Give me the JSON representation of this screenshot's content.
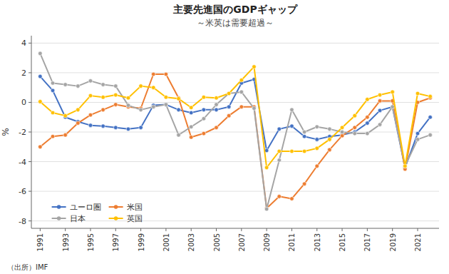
{
  "chart_data": {
    "type": "line",
    "title": "主要先進国のGDPギャップ",
    "subtitle": "～米英は需要超過～",
    "ylabel": "%",
    "source": "（出所）IMF",
    "x": [
      1991,
      1992,
      1993,
      1994,
      1995,
      1996,
      1997,
      1998,
      1999,
      2000,
      2001,
      2002,
      2003,
      2004,
      2005,
      2006,
      2007,
      2008,
      2009,
      2010,
      2011,
      2012,
      2013,
      2014,
      2015,
      2016,
      2017,
      2018,
      2019,
      2020,
      2021,
      2022
    ],
    "xlim": [
      1990.3,
      2022.7
    ],
    "xticks": [
      1991,
      1993,
      1995,
      1997,
      1999,
      2001,
      2003,
      2005,
      2007,
      2009,
      2011,
      2013,
      2015,
      2017,
      2019,
      2021
    ],
    "ylim": [
      -8.5,
      4.5
    ],
    "yticks": [
      -8,
      -6,
      -4,
      -2,
      0,
      2,
      4
    ],
    "grid": true,
    "legend": "lower left",
    "marker": "circle",
    "series": [
      {
        "name": "ユーロ圏",
        "color": "#4472C4",
        "values": [
          1.75,
          0.8,
          -1.0,
          -1.3,
          -1.55,
          -1.6,
          -1.7,
          -1.8,
          -1.7,
          -0.2,
          -0.15,
          -0.5,
          -0.7,
          -0.5,
          -0.5,
          -0.3,
          1.3,
          1.55,
          -3.25,
          -1.8,
          -1.6,
          -2.3,
          -2.5,
          -2.3,
          -2.2,
          -2.0,
          -1.4,
          -0.55,
          -0.3,
          -4.4,
          -2.1,
          -1.0
        ]
      },
      {
        "name": "米国",
        "color": "#ED7D31",
        "values": [
          -3.0,
          -2.3,
          -2.2,
          -1.4,
          -0.85,
          -0.5,
          -0.15,
          -0.3,
          -0.4,
          1.9,
          1.9,
          0.3,
          -2.35,
          -2.1,
          -1.7,
          -0.9,
          -0.3,
          -0.3,
          -7.15,
          -6.35,
          -6.5,
          -5.5,
          -4.3,
          -3.2,
          -2.25,
          -1.7,
          -1.0,
          0.1,
          0.1,
          -4.5,
          0.0,
          0.3
        ]
      },
      {
        "name": "日本",
        "color": "#A5A5A5",
        "values": [
          3.3,
          1.3,
          1.2,
          1.1,
          1.45,
          1.2,
          1.1,
          -0.2,
          -0.5,
          -0.3,
          -0.15,
          -2.2,
          -1.65,
          -1.1,
          -0.15,
          0.6,
          0.7,
          -0.4,
          -7.2,
          -3.9,
          -0.5,
          -2.0,
          -1.65,
          -1.8,
          -2.0,
          -2.1,
          -2.1,
          -1.5,
          -0.3,
          -4.3,
          -2.5,
          -2.2
        ]
      },
      {
        "name": "英国",
        "color": "#FFC000",
        "values": [
          0.05,
          -0.7,
          -0.9,
          -0.5,
          0.45,
          0.35,
          0.5,
          0.3,
          1.1,
          1.0,
          0.35,
          0.25,
          -0.35,
          0.35,
          0.3,
          0.6,
          1.5,
          2.4,
          -4.4,
          -3.3,
          -3.3,
          -3.3,
          -3.1,
          -2.5,
          -1.7,
          -0.9,
          0.2,
          0.5,
          0.7,
          -4.3,
          0.6,
          0.4
        ]
      }
    ]
  }
}
